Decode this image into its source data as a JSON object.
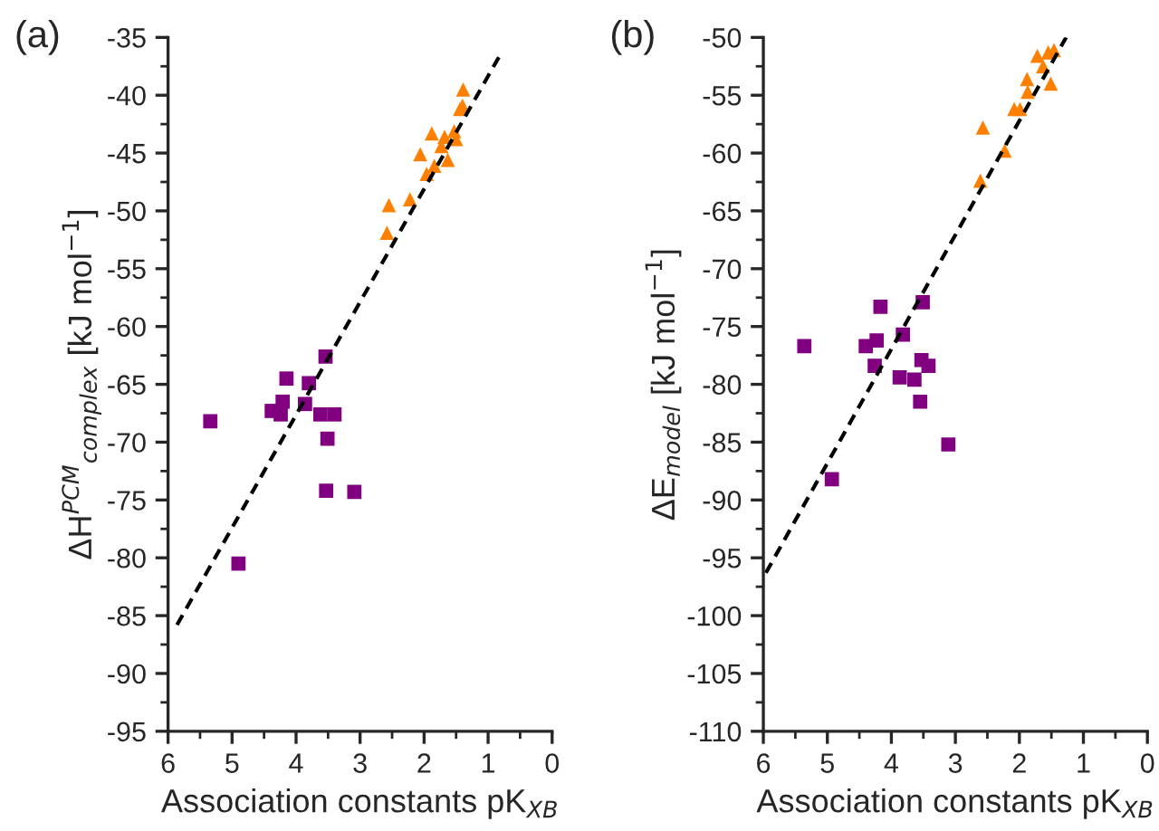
{
  "chart_data": [
    {
      "type": "scatter",
      "annotations": [
        "(a)"
      ],
      "xlabel": "Association constants pK$_{XB}$",
      "ylabel": "ΔH$^{PCM}$$_{complex}$ [kJ mol$^{−1}$]",
      "xlim": [
        6,
        0
      ],
      "xticks": [
        6,
        5,
        4,
        3,
        2,
        1,
        0
      ],
      "ylim": [
        -95,
        -35
      ],
      "yticks": [
        -95,
        -90,
        -85,
        -80,
        -75,
        -70,
        -65,
        -60,
        -55,
        -50,
        -45,
        -40,
        -35
      ],
      "grid": false,
      "legend": false,
      "series": [
        {
          "type": "scatter",
          "marker": "triangle",
          "color": "#ff8000",
          "x": [
            1.39,
            1.4,
            1.44,
            1.88,
            1.68,
            1.53,
            1.5,
            1.73,
            2.06,
            1.63,
            1.84,
            1.96,
            2.22,
            2.55,
            2.58
          ],
          "values": [
            -39.5,
            -40.9,
            -41.2,
            -43.3,
            -43.6,
            -43.1,
            -43.8,
            -44.4,
            -45.1,
            -45.6,
            -46.1,
            -46.8,
            -49.0,
            -49.5,
            -51.9
          ]
        },
        {
          "type": "scatter",
          "marker": "square",
          "color": "#800080",
          "x": [
            3.54,
            4.15,
            3.8,
            4.21,
            4.38,
            4.24,
            3.86,
            3.62,
            3.4,
            5.34,
            3.51,
            3.53,
            3.09,
            4.9
          ],
          "values": [
            -62.6,
            -64.5,
            -64.9,
            -66.5,
            -67.3,
            -67.6,
            -66.7,
            -67.6,
            -67.6,
            -68.2,
            -69.7,
            -74.2,
            -74.3,
            -80.5
          ]
        },
        {
          "type": "line",
          "line_style": "dashed",
          "marker": "none",
          "color": "#000000",
          "x": [
            5.86,
            0.78
          ],
          "values": [
            -85.8,
            -36.2
          ]
        }
      ]
    },
    {
      "type": "scatter",
      "annotations": [
        "(b)"
      ],
      "xlabel": "Association constants pK$_{XB}$",
      "ylabel": "ΔE$_{model}$ [kJ mol$^{−1}$]",
      "xlim": [
        6,
        0
      ],
      "xticks": [
        6,
        5,
        4,
        3,
        2,
        1,
        0
      ],
      "ylim": [
        -110,
        -50
      ],
      "yticks": [
        -110,
        -105,
        -100,
        -95,
        -90,
        -85,
        -80,
        -75,
        -70,
        -65,
        -60,
        -55,
        -50
      ],
      "grid": false,
      "legend": false,
      "series": [
        {
          "type": "scatter",
          "marker": "triangle",
          "color": "#ff8000",
          "x": [
            1.46,
            1.55,
            1.72,
            1.63,
            1.51,
            1.88,
            1.87,
            2.08,
            1.99,
            2.57,
            2.23,
            2.61
          ],
          "values": [
            -51.1,
            -51.3,
            -51.6,
            -52.5,
            -54.0,
            -53.6,
            -54.7,
            -56.2,
            -56.2,
            -57.8,
            -59.8,
            -62.4
          ]
        },
        {
          "type": "scatter",
          "marker": "square",
          "color": "#800080",
          "x": [
            4.17,
            3.51,
            3.82,
            5.36,
            4.4,
            4.23,
            4.26,
            3.53,
            3.42,
            3.87,
            3.64,
            3.55,
            3.11,
            4.93
          ],
          "values": [
            -73.3,
            -72.9,
            -75.7,
            -76.7,
            -76.7,
            -76.2,
            -78.4,
            -77.9,
            -78.4,
            -79.4,
            -79.6,
            -81.5,
            -85.2,
            -88.2
          ]
        },
        {
          "type": "line",
          "line_style": "dashed",
          "marker": "none",
          "color": "#000000",
          "x": [
            5.96,
            1.27
          ],
          "values": [
            -96.3,
            -50.0
          ]
        }
      ]
    }
  ]
}
